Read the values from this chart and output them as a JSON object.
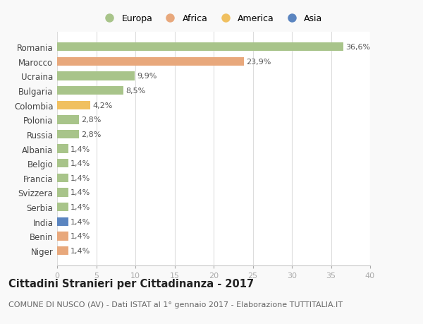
{
  "countries": [
    "Romania",
    "Marocco",
    "Ucraina",
    "Bulgaria",
    "Colombia",
    "Polonia",
    "Russia",
    "Albania",
    "Belgio",
    "Francia",
    "Svizzera",
    "Serbia",
    "India",
    "Benin",
    "Niger"
  ],
  "values": [
    36.6,
    23.9,
    9.9,
    8.5,
    4.2,
    2.8,
    2.8,
    1.4,
    1.4,
    1.4,
    1.4,
    1.4,
    1.4,
    1.4,
    1.4
  ],
  "labels": [
    "36,6%",
    "23,9%",
    "9,9%",
    "8,5%",
    "4,2%",
    "2,8%",
    "2,8%",
    "1,4%",
    "1,4%",
    "1,4%",
    "1,4%",
    "1,4%",
    "1,4%",
    "1,4%",
    "1,4%"
  ],
  "continents": [
    "Europa",
    "Africa",
    "Europa",
    "Europa",
    "America",
    "Europa",
    "Europa",
    "Europa",
    "Europa",
    "Europa",
    "Europa",
    "Europa",
    "Asia",
    "Africa",
    "Africa"
  ],
  "colors": {
    "Europa": "#a8c48a",
    "Africa": "#e8a87c",
    "America": "#f0c060",
    "Asia": "#5b85c0"
  },
  "legend_order": [
    "Europa",
    "Africa",
    "America",
    "Asia"
  ],
  "title": "Cittadini Stranieri per Cittadinanza - 2017",
  "subtitle": "COMUNE DI NUSCO (AV) - Dati ISTAT al 1° gennaio 2017 - Elaborazione TUTTITALIA.IT",
  "xlim": [
    0,
    40
  ],
  "xticks": [
    0,
    5,
    10,
    15,
    20,
    25,
    30,
    35,
    40
  ],
  "background_color": "#f9f9f9",
  "bar_background": "#ffffff",
  "title_fontsize": 10.5,
  "subtitle_fontsize": 8,
  "label_fontsize": 8,
  "ytick_fontsize": 8.5,
  "xtick_fontsize": 8,
  "legend_fontsize": 9
}
